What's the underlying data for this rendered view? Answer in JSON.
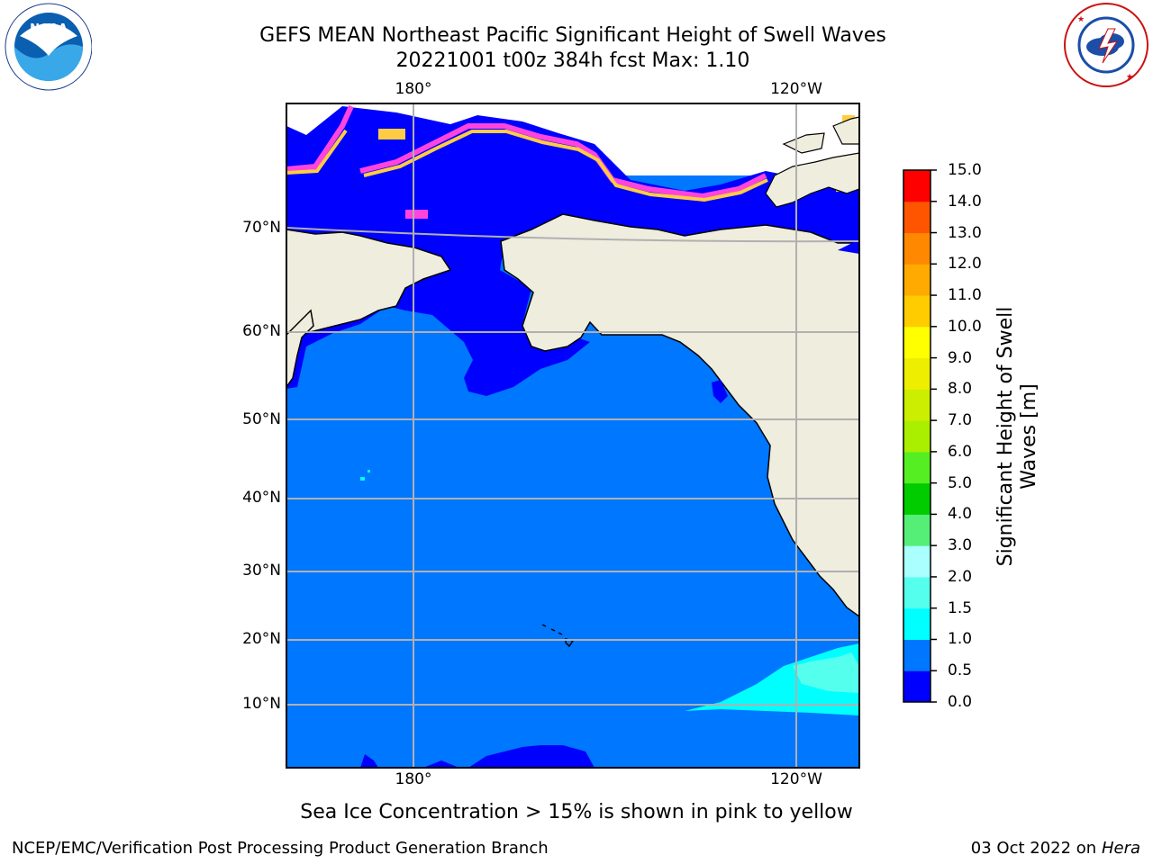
{
  "title": {
    "line1": "GEFS MEAN Northeast Pacific Significant Height of Swell Waves",
    "line2": "20221001 t00z 384h fcst   Max: 1.10"
  },
  "map": {
    "lon_labels": [
      "180°",
      "120°W"
    ],
    "lat_labels": [
      "70°N",
      "60°N",
      "50°N",
      "40°N",
      "30°N",
      "20°N",
      "10°N"
    ],
    "colors": {
      "land": "#efedde",
      "ocean_low": "#0000ff",
      "ocean_mid": "#0077ff",
      "ocean_high": "#00ffff",
      "ice_pink": "#ff44dd",
      "ice_yellow": "#ffcc44"
    }
  },
  "colorbar": {
    "label_line1": "Significant Height of Swell",
    "label_line2": "Waves [m]",
    "ticks": [
      "15.0",
      "14.0",
      "13.0",
      "12.0",
      "11.0",
      "10.0",
      "9.0",
      "8.0",
      "7.0",
      "6.0",
      "5.0",
      "4.0",
      "3.0",
      "2.0",
      "1.5",
      "1.0",
      "0.5",
      "0.0"
    ],
    "colors_bottom_to_top": [
      "#0000ff",
      "#0077ff",
      "#00ffff",
      "#55ffee",
      "#aaffff",
      "#55ee77",
      "#00cc00",
      "#55ee22",
      "#aaee00",
      "#ccee00",
      "#eeee00",
      "#ffff00",
      "#ffcc00",
      "#ffaa00",
      "#ff8800",
      "#ff5500",
      "#ff0000"
    ]
  },
  "note": "Sea Ice Concentration > 15% is shown in pink to yellow",
  "footer": {
    "left": "NCEP/EMC/Verification Post Processing Product Generation Branch",
    "right_date": "03 Oct 2022 on ",
    "right_machine": "Hera"
  },
  "logos": {
    "noaa_text": "NOAA",
    "nws_text": "NATIONAL WEATHER SERVICE"
  }
}
